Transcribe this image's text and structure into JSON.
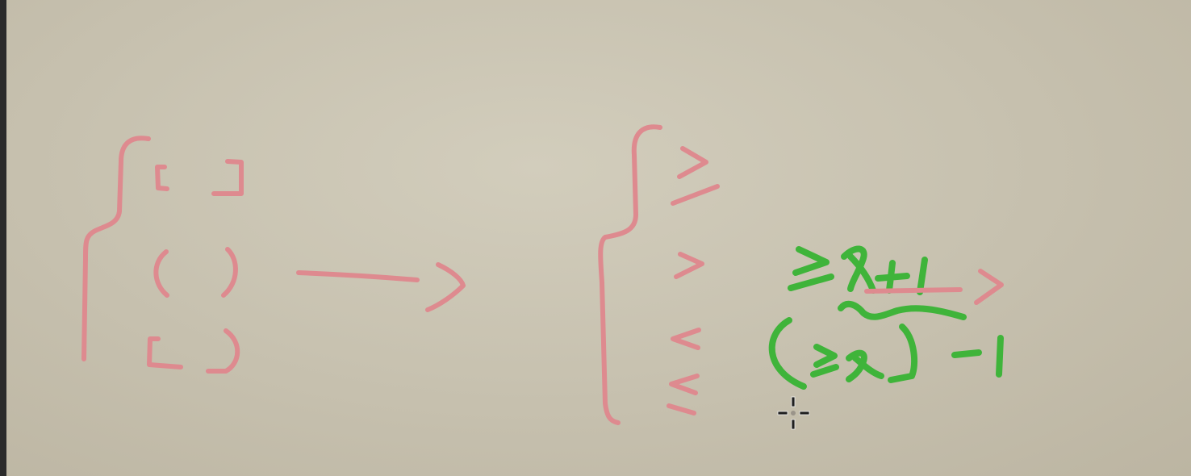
{
  "colors": {
    "board": "#c8c2b0",
    "pink_ink": "#de8a8f",
    "green_ink": "#3fb43a",
    "cursor": "#1f1f1f",
    "left_edge": "#2b2b2b"
  },
  "icons": {
    "cursor": "crosshair-move-icon"
  }
}
